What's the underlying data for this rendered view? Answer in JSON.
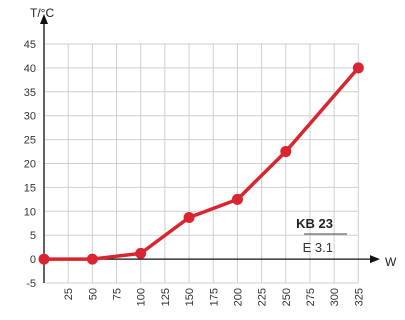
{
  "chart_data": {
    "type": "line",
    "xlabel": "W",
    "ylabel": "T/°C",
    "xlim": [
      0,
      335
    ],
    "ylim": [
      -5,
      45
    ],
    "x_ticks": [
      25,
      50,
      75,
      100,
      125,
      150,
      175,
      200,
      225,
      250,
      275,
      300,
      325
    ],
    "y_ticks": [
      -5,
      0,
      5,
      10,
      15,
      20,
      25,
      30,
      35,
      40,
      45
    ],
    "grid": true,
    "annotations": [
      "KB 23",
      "E 3.1"
    ],
    "series": [
      {
        "color": "#d9252f",
        "x": [
          0,
          50,
          100,
          150,
          200,
          250,
          325
        ],
        "y": [
          0,
          0,
          1.2,
          8.7,
          12.5,
          22.5,
          40
        ]
      }
    ]
  }
}
